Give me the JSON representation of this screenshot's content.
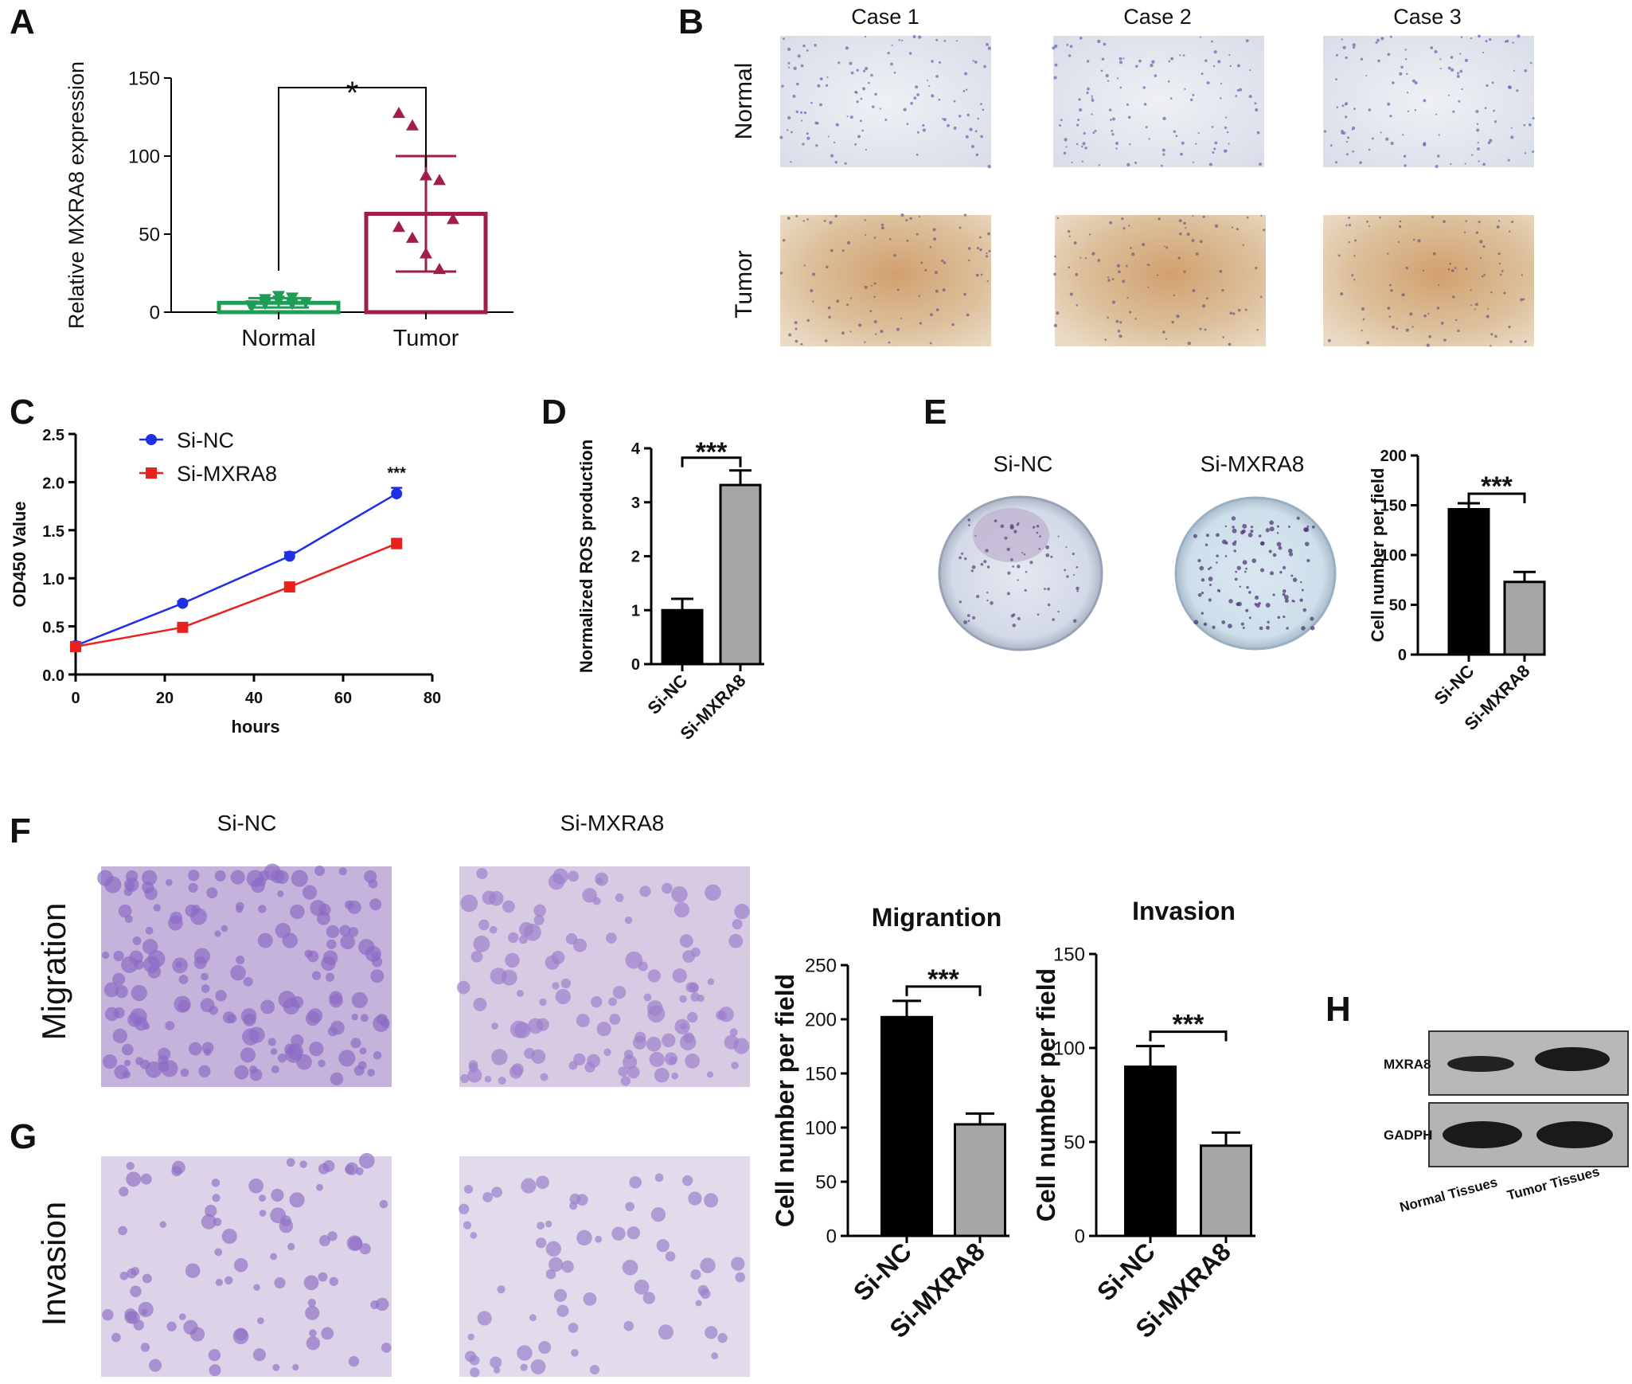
{
  "panel_letters": [
    "A",
    "B",
    "C",
    "D",
    "E",
    "F",
    "G",
    "H"
  ],
  "ihc": {
    "cases": [
      "Case 1",
      "Case 2",
      "Case 3"
    ],
    "rows": [
      "Normal",
      "Tumor"
    ]
  },
  "colony": {
    "labels": [
      "Si-NC",
      "Si-MXRA8"
    ]
  },
  "transwell": {
    "cols": [
      "Si-NC",
      "Si-MXRA8"
    ],
    "rows": [
      "Migration",
      "Invasion"
    ]
  },
  "western": {
    "bands": [
      "MXRA8",
      "GADPH"
    ],
    "lanes": [
      "Normal Tissues",
      "Tumor Tissues"
    ]
  },
  "colors": {
    "green": "#1e9d55",
    "crimson": "#a01d4e",
    "blue": "#1f2fe6",
    "red": "#e8231f",
    "gray": "#a6a6a6",
    "black": "#000000"
  },
  "chart_data": [
    {
      "panel": "A",
      "type": "bar",
      "categories": [
        "Normal",
        "Tumor"
      ],
      "values": [
        6,
        63
      ],
      "errors": [
        3,
        37
      ],
      "points": [
        [
          3,
          5,
          7,
          9,
          6,
          4,
          8,
          10,
          5
        ],
        [
          128,
          120,
          88,
          85,
          60,
          55,
          48,
          38,
          28
        ]
      ],
      "ylabel": "Relative MXRA8 expression",
      "xlabel": "",
      "ylim": [
        0,
        150
      ],
      "yticks": [
        0,
        50,
        100,
        150
      ],
      "significance": "*"
    },
    {
      "panel": "C",
      "type": "line",
      "x": [
        0,
        24,
        48,
        72
      ],
      "series": [
        {
          "name": "Si-NC",
          "values": [
            0.3,
            0.74,
            1.23,
            1.88
          ],
          "errors": [
            0.02,
            0.02,
            0.04,
            0.06
          ]
        },
        {
          "name": "Si-MXRA8",
          "values": [
            0.29,
            0.49,
            0.91,
            1.36
          ],
          "errors": [
            0.02,
            0.02,
            0.03,
            0.05
          ]
        }
      ],
      "xlabel": "hours",
      "ylabel": "OD450 Value",
      "xlim": [
        0,
        80
      ],
      "xticks": [
        0,
        20,
        40,
        60,
        80
      ],
      "ylim": [
        0,
        2.5
      ],
      "yticks": [
        0.0,
        0.5,
        1.0,
        1.5,
        2.0,
        2.5
      ],
      "significance": "***",
      "legend": "top-left"
    },
    {
      "panel": "D",
      "type": "bar",
      "categories": [
        "Si-NC",
        "Si-MXRA8"
      ],
      "values": [
        1.0,
        3.32
      ],
      "errors": [
        0.21,
        0.27
      ],
      "ylabel": "Normalized ROS production",
      "xlabel": "",
      "ylim": [
        0,
        4
      ],
      "yticks": [
        0,
        1,
        2,
        3,
        4
      ],
      "significance": "***"
    },
    {
      "panel": "E",
      "type": "bar",
      "categories": [
        "Si-NC",
        "Si-MXRA8"
      ],
      "values": [
        146,
        73
      ],
      "errors": [
        6,
        10
      ],
      "ylabel": "Cell number per field",
      "xlabel": "",
      "ylim": [
        0,
        200
      ],
      "yticks": [
        0,
        50,
        100,
        150,
        200
      ],
      "significance": "***"
    },
    {
      "panel": "F",
      "type": "bar",
      "title": "Migrantion",
      "categories": [
        "Si-NC",
        "Si-MXRA8"
      ],
      "values": [
        202,
        103
      ],
      "errors": [
        15,
        10
      ],
      "ylabel": "Cell number per field",
      "xlabel": "",
      "ylim": [
        0,
        250
      ],
      "yticks": [
        0,
        50,
        100,
        150,
        200,
        250
      ],
      "significance": "***"
    },
    {
      "panel": "G",
      "type": "bar",
      "title": "Invasion",
      "categories": [
        "Si-NC",
        "Si-MXRA8"
      ],
      "values": [
        90,
        48
      ],
      "errors": [
        11,
        7
      ],
      "ylabel": "Cell number per field",
      "xlabel": "",
      "ylim": [
        0,
        150
      ],
      "yticks": [
        0,
        50,
        100,
        150
      ],
      "significance": "***"
    }
  ]
}
